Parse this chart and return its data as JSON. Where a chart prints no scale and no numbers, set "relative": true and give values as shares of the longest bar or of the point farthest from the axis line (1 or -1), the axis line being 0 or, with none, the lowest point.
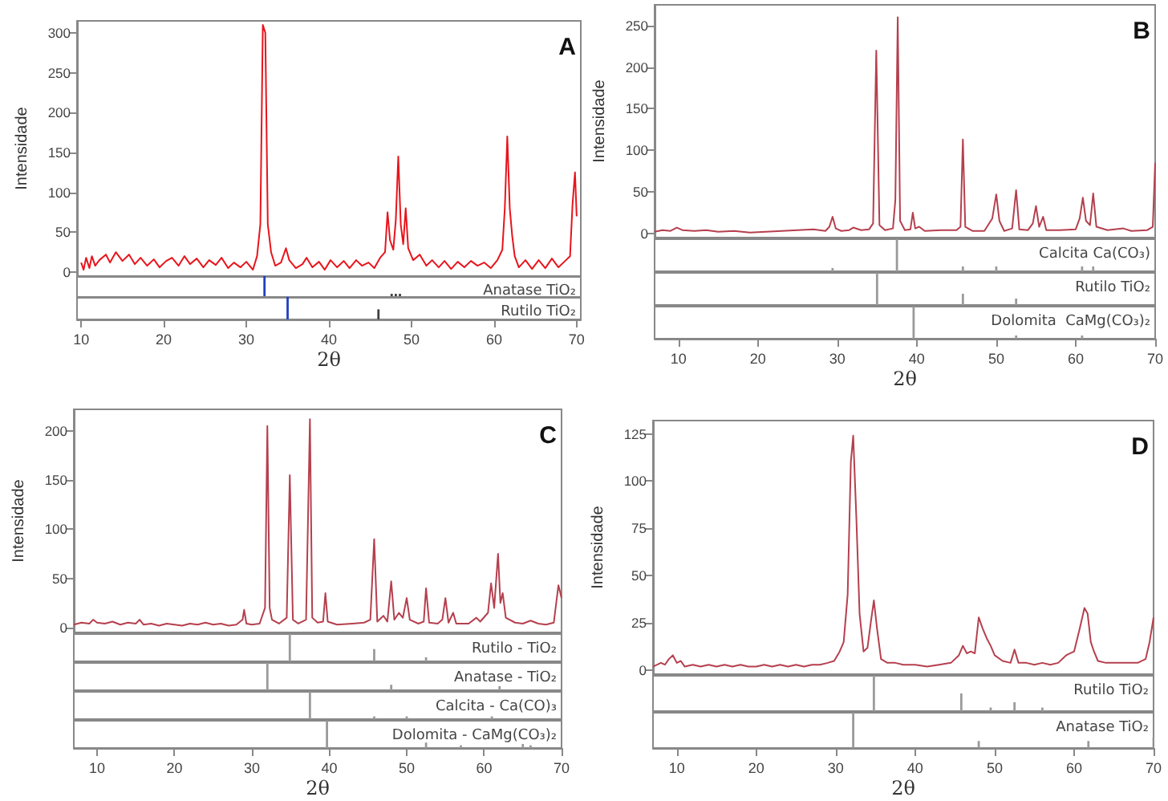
{
  "chart_data": [
    {
      "type": "line",
      "title": "A",
      "ylabel": "Intensidade",
      "xlim": [
        9.5,
        70.5
      ],
      "ylim": [
        -5,
        315
      ],
      "yticks": [
        0,
        50,
        100,
        150,
        200,
        250,
        300
      ],
      "tick_labels": "y",
      "series": [
        {
          "color": "#e8141c",
          "x": [
            10,
            10.3,
            10.6,
            11,
            11.3,
            11.7,
            12.2,
            13,
            13.5,
            14.2,
            15,
            15.8,
            16.5,
            17.2,
            18,
            18.8,
            19.5,
            20.3,
            21,
            21.8,
            22.5,
            23.2,
            24,
            24.8,
            25.5,
            26.3,
            27,
            27.8,
            28.5,
            29.3,
            30,
            30.8,
            31.3,
            31.7,
            32,
            32.3,
            32.6,
            33,
            33.5,
            34.2,
            34.8,
            35.2,
            36,
            36.8,
            37.3,
            38,
            38.8,
            39.5,
            40.2,
            41,
            41.8,
            42.5,
            43.3,
            44,
            44.8,
            45.5,
            46.2,
            46.8,
            47.1,
            47.4,
            47.8,
            48.1,
            48.4,
            48.7,
            49,
            49.3,
            49.6,
            50.2,
            51,
            51.8,
            52.5,
            53.3,
            54,
            54.8,
            55.6,
            56.4,
            57.2,
            58,
            58.8,
            59.6,
            60.4,
            61,
            61.3,
            61.6,
            61.9,
            62.2,
            62.5,
            63,
            63.8,
            64.6,
            65.4,
            66.2,
            67,
            67.8,
            68.6,
            69.2,
            69.5,
            69.8,
            70
          ],
          "values": [
            12,
            3,
            18,
            5,
            20,
            8,
            15,
            22,
            12,
            25,
            14,
            22,
            10,
            18,
            8,
            16,
            6,
            14,
            18,
            8,
            20,
            10,
            17,
            6,
            15,
            9,
            18,
            5,
            12,
            6,
            13,
            3,
            20,
            60,
            310,
            300,
            60,
            25,
            8,
            12,
            30,
            15,
            5,
            10,
            18,
            6,
            13,
            3,
            15,
            6,
            14,
            5,
            15,
            8,
            12,
            5,
            18,
            25,
            75,
            40,
            28,
            65,
            145,
            60,
            35,
            80,
            30,
            15,
            22,
            8,
            15,
            6,
            14,
            4,
            13,
            6,
            14,
            8,
            12,
            5,
            15,
            28,
            80,
            170,
            80,
            45,
            20,
            6,
            15,
            4,
            15,
            5,
            17,
            6,
            14,
            20,
            85,
            125,
            70
          ]
        }
      ]
    },
    {
      "type": "bar",
      "relative": true,
      "title": "Anatase TiO₂",
      "xlim": [
        9.5,
        70.5
      ],
      "tick_labels": false,
      "x": [
        32.2,
        47.6,
        48.1,
        48.6
      ],
      "values": [
        1,
        0.15,
        0.15,
        0.15
      ],
      "colors": [
        "#2040c0",
        "#404040",
        "#404040",
        "#404040"
      ]
    },
    {
      "type": "bar",
      "relative": true,
      "title": "Rutilo TiO₂",
      "xlim": [
        9.5,
        70.5
      ],
      "xticks": [
        10,
        20,
        30,
        40,
        50,
        60,
        70
      ],
      "xlabel": "2θ",
      "tick_labels": "x",
      "x": [
        35,
        46
      ],
      "values": [
        1,
        0.45
      ],
      "colors": [
        "#2040c0",
        "#404040"
      ]
    },
    {
      "type": "line",
      "title": "B",
      "ylabel": "Intensidade",
      "xlim": [
        7,
        70
      ],
      "ylim": [
        -5,
        275
      ],
      "yticks": [
        0,
        50,
        100,
        150,
        200,
        250
      ],
      "tick_labels": "y",
      "series": [
        {
          "color": "#b5404e",
          "x": [
            7,
            8,
            9,
            9.8,
            10.5,
            12,
            13.5,
            15,
            17,
            19,
            21,
            23,
            25,
            27,
            28.5,
            29,
            29.4,
            29.8,
            30.5,
            31.5,
            32,
            33,
            34,
            34.5,
            34.9,
            35.3,
            36,
            37,
            37.3,
            37.6,
            37.9,
            38.5,
            39.2,
            39.5,
            39.8,
            40.3,
            41,
            43,
            45,
            45.5,
            45.8,
            46.1,
            47,
            48.5,
            49.5,
            50,
            50.4,
            51,
            52,
            52.5,
            52.9,
            54,
            54.6,
            55,
            55.4,
            55.9,
            56.3,
            58,
            60,
            60.5,
            60.9,
            61.3,
            61.8,
            62.2,
            62.6,
            64,
            66,
            67,
            69,
            69.7,
            70
          ],
          "values": [
            2,
            4,
            3,
            7,
            4,
            3,
            4,
            2,
            3,
            1,
            2,
            3,
            4,
            5,
            3,
            8,
            20,
            6,
            3,
            4,
            7,
            4,
            5,
            12,
            220,
            10,
            4,
            6,
            40,
            260,
            15,
            4,
            5,
            25,
            6,
            8,
            3,
            4,
            4,
            8,
            113,
            8,
            3,
            3,
            18,
            47,
            15,
            3,
            6,
            52,
            5,
            4,
            12,
            33,
            8,
            20,
            4,
            4,
            5,
            18,
            43,
            15,
            10,
            48,
            8,
            4,
            6,
            3,
            4,
            8,
            85
          ]
        }
      ]
    },
    {
      "type": "bar",
      "relative": true,
      "title": "Calcita Ca(CO₃)",
      "xlim": [
        7,
        70
      ],
      "tick_labels": false,
      "x": [
        29.4,
        37.5,
        45.8,
        50,
        60.8,
        62.2
      ],
      "values": [
        0.1,
        1,
        0.15,
        0.15,
        0.15,
        0.15
      ],
      "colors": [
        "#9a9a9a",
        "#9a9a9a",
        "#9a9a9a",
        "#9a9a9a",
        "#9a9a9a",
        "#9a9a9a"
      ]
    },
    {
      "type": "bar",
      "relative": true,
      "title": "Rutilo TiO₂",
      "xlim": [
        7,
        70
      ],
      "tick_labels": false,
      "x": [
        35,
        45.8,
        52.5
      ],
      "values": [
        1,
        0.35,
        0.2
      ],
      "colors": [
        "#9a9a9a",
        "#9a9a9a",
        "#9a9a9a"
      ]
    },
    {
      "type": "bar",
      "relative": true,
      "title": "Dolomita  CaMg(CO₃)₂",
      "xlim": [
        7,
        70
      ],
      "xticks": [
        10,
        20,
        30,
        40,
        50,
        60,
        70
      ],
      "xlabel": "2θ",
      "tick_labels": "x",
      "x": [
        39.6,
        52.5,
        60.8
      ],
      "values": [
        1,
        0.1,
        0.1
      ],
      "colors": [
        "#9a9a9a",
        "#9a9a9a",
        "#9a9a9a"
      ]
    },
    {
      "type": "line",
      "title": "C",
      "ylabel": "Intensidade",
      "xlim": [
        7,
        70
      ],
      "ylim": [
        -5,
        222
      ],
      "yticks": [
        0,
        50,
        100,
        150,
        200
      ],
      "tick_labels": "y",
      "series": [
        {
          "color": "#b5404e",
          "x": [
            7,
            8,
            9,
            9.5,
            10,
            11,
            12,
            13,
            14,
            15,
            15.5,
            16,
            17,
            18,
            19,
            20,
            21,
            22,
            23,
            24,
            25,
            26,
            27,
            28,
            28.8,
            29,
            29.3,
            30,
            31,
            31.7,
            32,
            32.3,
            32.6,
            33.5,
            34.5,
            34.9,
            35.3,
            36,
            37,
            37.5,
            37.8,
            38.5,
            39.2,
            39.5,
            39.8,
            41,
            43,
            44.5,
            45.3,
            45.8,
            46.2,
            47,
            47.5,
            48,
            48.4,
            49,
            49.5,
            50,
            50.4,
            51.5,
            52.2,
            52.5,
            52.9,
            54,
            54.6,
            55,
            55.4,
            56,
            56.4,
            58,
            59,
            59.5,
            60.5,
            60.9,
            61.3,
            61.8,
            62.1,
            62.4,
            62.8,
            64,
            65,
            66,
            67,
            68,
            69,
            69.6,
            70
          ],
          "values": [
            3,
            5,
            4,
            8,
            5,
            4,
            6,
            3,
            5,
            4,
            8,
            3,
            4,
            2,
            4,
            3,
            2,
            4,
            3,
            5,
            3,
            4,
            2,
            3,
            8,
            18,
            4,
            3,
            4,
            20,
            205,
            20,
            8,
            4,
            10,
            155,
            8,
            4,
            8,
            212,
            10,
            5,
            6,
            35,
            6,
            3,
            4,
            5,
            8,
            90,
            6,
            12,
            6,
            47,
            8,
            15,
            10,
            30,
            8,
            4,
            6,
            40,
            5,
            4,
            8,
            30,
            5,
            15,
            4,
            4,
            10,
            6,
            15,
            45,
            20,
            75,
            25,
            35,
            10,
            5,
            4,
            7,
            4,
            3,
            5,
            43,
            30
          ]
        }
      ]
    },
    {
      "type": "bar",
      "relative": true,
      "title": "Rutilo - TiO₂",
      "xlim": [
        7,
        70
      ],
      "tick_labels": false,
      "x": [
        34.9,
        45.8,
        52.5
      ],
      "values": [
        1,
        0.45,
        0.15
      ],
      "colors": [
        "#9a9a9a",
        "#9a9a9a",
        "#9a9a9a"
      ]
    },
    {
      "type": "bar",
      "relative": true,
      "title": "Anatase - TiO₂",
      "xlim": [
        7,
        70
      ],
      "tick_labels": false,
      "x": [
        32,
        48,
        62
      ],
      "values": [
        1,
        0.2,
        0.15
      ],
      "colors": [
        "#9a9a9a",
        "#9a9a9a",
        "#9a9a9a"
      ]
    },
    {
      "type": "bar",
      "relative": true,
      "title": "Calcita - Ca(CO)₃",
      "xlim": [
        7,
        70
      ],
      "tick_labels": false,
      "x": [
        37.5,
        45.8,
        50,
        61
      ],
      "values": [
        1,
        0.1,
        0.1,
        0.1
      ],
      "colors": [
        "#9a9a9a",
        "#9a9a9a",
        "#9a9a9a",
        "#9a9a9a"
      ]
    },
    {
      "type": "bar",
      "relative": true,
      "title": "Dolomita - CaMg(CO₃)₂",
      "xlim": [
        7,
        70
      ],
      "xticks": [
        10,
        20,
        30,
        40,
        50,
        60,
        70
      ],
      "xlabel": "2θ",
      "tick_labels": "x",
      "x": [
        39.7,
        52.5,
        57,
        65,
        66
      ],
      "values": [
        1,
        0.2,
        0.1,
        0.15,
        0.1
      ],
      "colors": [
        "#9a9a9a",
        "#9a9a9a",
        "#9a9a9a",
        "#9a9a9a",
        "#9a9a9a"
      ]
    },
    {
      "type": "line",
      "title": "D",
      "ylabel": "Intensidade",
      "xlim": [
        7,
        70
      ],
      "ylim": [
        -2,
        132
      ],
      "yticks": [
        0,
        25,
        50,
        75,
        100,
        125
      ],
      "tick_labels": "y",
      "series": [
        {
          "color": "#b5404e",
          "x": [
            7,
            8,
            8.5,
            9,
            9.5,
            10,
            10.5,
            11,
            12,
            13,
            14,
            15,
            16,
            17,
            18,
            19,
            20,
            21,
            22,
            23,
            24,
            25,
            26,
            27,
            28,
            29,
            29.8,
            30.5,
            31,
            31.5,
            31.9,
            32.2,
            32.6,
            33,
            33.5,
            34,
            34.4,
            34.8,
            35.2,
            35.7,
            36.5,
            37.5,
            38.5,
            40,
            41.5,
            43,
            44.5,
            45.5,
            46,
            46.5,
            47,
            47.5,
            48,
            48.5,
            49,
            49.5,
            50,
            51,
            52,
            52.5,
            53,
            54,
            55,
            56,
            57,
            58,
            59,
            60,
            60.7,
            61.3,
            61.7,
            62.1,
            62.5,
            63,
            64,
            65,
            66,
            67,
            68,
            69,
            69.5,
            70
          ],
          "values": [
            2,
            4,
            3,
            6,
            8,
            4,
            5,
            2,
            3,
            2,
            3,
            2,
            3,
            2,
            3,
            2,
            2,
            3,
            2,
            3,
            2,
            3,
            2,
            3,
            3,
            4,
            5,
            10,
            15,
            40,
            110,
            124,
            80,
            30,
            10,
            12,
            25,
            37,
            22,
            6,
            4,
            4,
            3,
            3,
            2,
            3,
            4,
            8,
            13,
            9,
            10,
            9,
            28,
            22,
            17,
            13,
            8,
            5,
            4,
            11,
            4,
            4,
            3,
            4,
            3,
            4,
            8,
            10,
            22,
            33,
            30,
            15,
            10,
            5,
            4,
            4,
            4,
            4,
            4,
            6,
            15,
            28
          ]
        }
      ]
    },
    {
      "type": "bar",
      "relative": true,
      "title": "Rutilo TiO₂",
      "xlim": [
        7,
        70
      ],
      "tick_labels": false,
      "x": [
        34.8,
        45.8,
        49.5,
        52.5,
        56
      ],
      "values": [
        1,
        0.5,
        0.1,
        0.25,
        0.1
      ],
      "colors": [
        "#9a9a9a",
        "#9a9a9a",
        "#9a9a9a",
        "#9a9a9a",
        "#9a9a9a"
      ]
    },
    {
      "type": "bar",
      "relative": true,
      "title": "Anatase TiO₂",
      "xlim": [
        7,
        70
      ],
      "xticks": [
        10,
        20,
        30,
        40,
        50,
        60,
        70
      ],
      "xlabel": "2θ",
      "tick_labels": "x",
      "x": [
        32.2,
        48,
        61.8,
        70
      ],
      "values": [
        1,
        0.2,
        0.2,
        0.3
      ],
      "colors": [
        "#9a9a9a",
        "#9a9a9a",
        "#9a9a9a",
        "#9a9a9a"
      ]
    }
  ]
}
